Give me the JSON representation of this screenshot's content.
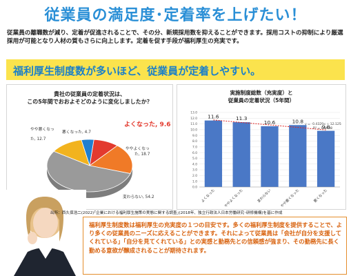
{
  "title": "従業員の満足度･定着率を上げたい！",
  "intro": "従業員の離職数が減り、定着が促進されることで、その分、新規採用数を抑えることができます。採用コストの抑制により厳選採用が可能となり人材の質もさらに向上します。定着を促す手段が福利厚生の充実です。",
  "banner": "福利厚生制度数が多いほど、従業員が定着しやすい。",
  "pie": {
    "question_line1": "貴社の従業員の定着状況は、",
    "question_line2": "この5年間でおおよそどのように変化しましたか？",
    "labels": {
      "improved": "よくなった, 9.6",
      "somewhat_improved_name": "ややよくなっ",
      "somewhat_improved_val": "た, 18.7",
      "unchanged": "変わらない, 54.2",
      "somewhat_worse_name": "やや悪くなっ",
      "somewhat_worse_val": "た, 12.7",
      "worse": "悪くなった, 4.7"
    }
  },
  "bar": {
    "title_line1": "実施制度総数（充実度）と",
    "title_line2": "従業員の定着状況（5年間）",
    "equation": "y = -0.4329x + 12.125",
    "r2": "R² = 0.8938",
    "color_bar": "#4a78c6",
    "color_trend": "#e0211f"
  },
  "chart_data": [
    {
      "type": "pie",
      "title": "貴社の従業員の定着状況は、この5年間でおおよそどのように変化しましたか？",
      "categories": [
        "よくなった",
        "ややよくなった",
        "変わらない",
        "やや悪くなった",
        "悪くなった"
      ],
      "values": [
        9.6,
        18.7,
        54.2,
        12.7,
        4.7
      ],
      "colors": [
        "#e33a2e",
        "#f07a27",
        "#9a9a9a",
        "#f2b31e",
        "#1e7fd0"
      ]
    },
    {
      "type": "bar",
      "title": "実施制度総数（充実度）と従業員の定着状況（5年間）",
      "categories": [
        "よくなった",
        "ややよくなった",
        "変わらない",
        "やや悪くなった",
        "悪くなった"
      ],
      "values": [
        11.6,
        11.3,
        10.6,
        10.8,
        9.8
      ],
      "ylim": [
        0,
        13
      ],
      "yticks": [
        "0.0",
        "1.0",
        "2.0",
        "3.0",
        "4.0",
        "5.0",
        "6.0",
        "7.0",
        "8.0",
        "9.0",
        "10.0",
        "11.0",
        "12.0",
        "13.0"
      ],
      "trendline": {
        "slope": -0.4329,
        "intercept": 12.125
      }
    }
  ],
  "source": "出所：西久保浩二(2022)｢企業における福利厚生施策の実態に関する調査｣(2018年、独立行政法人日本労働研究･研修機構)を基に作成",
  "textbox": "福利厚生制度数は福利厚生の充実度の１つの目安です。多くの福利厚生制度を提供することで、より多くの従業員のニーズに応えることができます。それによって従業員は「会社が自分を支援してくれている」「自分を見てくれている」との実感と勤務先との信頼感が強まり、その勤務先に長く勤める意欲が醸成されることが期待されます。"
}
